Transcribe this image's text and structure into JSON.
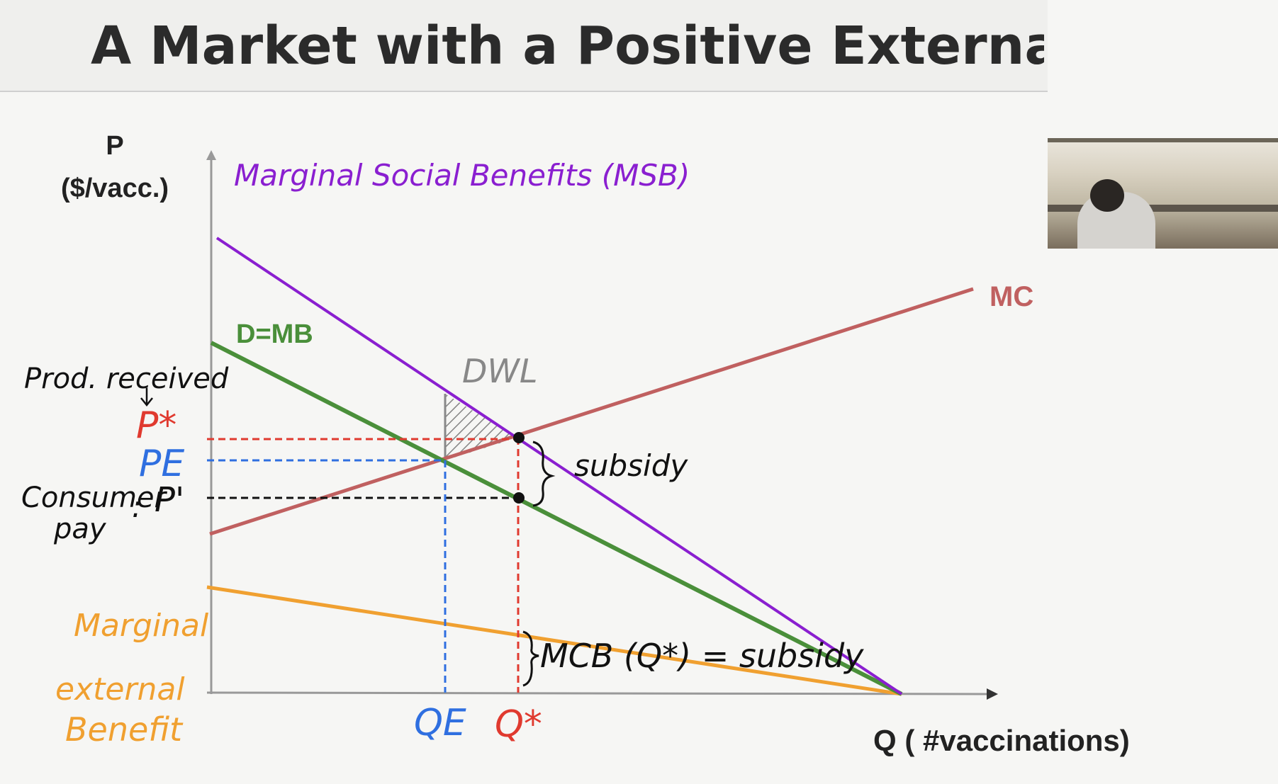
{
  "title": "A Market with a Positive Externalit",
  "axes": {
    "y_label_line1": "P",
    "y_label_line2": "($/vacc.)",
    "x_label": "Q ( #vaccinations)"
  },
  "curves": {
    "msb": "Marginal Social Benefits (MSB)",
    "demand": "D=MB",
    "mc": "MC",
    "meb_line1": "Marginal",
    "meb_line2": "external",
    "meb_line3": "Benefit"
  },
  "price_labels": {
    "prod_received": "Prod. received",
    "p_star": "P*",
    "p_e": "PE",
    "consumer_pay_line1": "Consumer",
    "consumer_pay_line2": "pay",
    "colon": ":",
    "p_prime": "P'"
  },
  "quantity_labels": {
    "q_e": "QE",
    "q_star": "Q*"
  },
  "annotations": {
    "dwl": "DWL",
    "subsidy": "subsidy",
    "mcb_subsidy": "MCB (Q*) = subsidy"
  },
  "colors": {
    "msb": "#8a1fd0",
    "demand": "#4a8f3a",
    "mc": "#c06060",
    "meb": "#f0a030",
    "p_star": "#e03a2f",
    "p_e": "#2f6fe0",
    "ink": "#111111",
    "dwl": "#888888"
  }
}
